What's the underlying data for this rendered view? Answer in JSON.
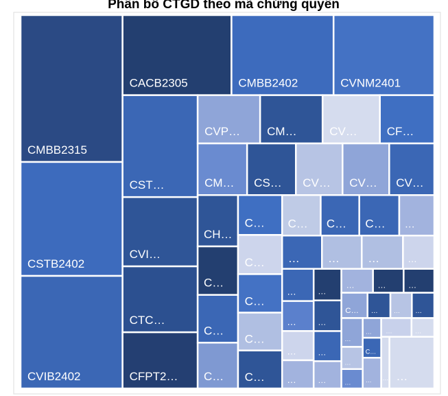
{
  "chart_data": {
    "type": "treemap",
    "title": "Phân bổ CTGD theo mã chứng quyền",
    "categories": [
      "CMBB2315",
      "CSTB2402",
      "CVIB2402",
      "CACB2305",
      "CMBB2402",
      "CVNM2401",
      "CST…",
      "CVI…",
      "CTC…",
      "CFPT2…",
      "CVP…",
      "CM…",
      "CV…",
      "CF…",
      "CM…",
      "CS…",
      "CV…",
      "CV…",
      "CV…",
      "CH…",
      "C…",
      "C…",
      "C…",
      "C…",
      "C…",
      "C…",
      "C…",
      "C…",
      "C…",
      "C…",
      "C…",
      "…",
      "…",
      "…",
      "…",
      "…",
      "…",
      "…",
      "…",
      "…",
      "…",
      "…",
      "…",
      "…",
      "…",
      "…",
      "…",
      "C…",
      "…",
      "…",
      "…",
      "…",
      "…",
      "…",
      "…",
      "C…",
      "…",
      "…",
      "…",
      "…",
      "…"
    ],
    "values": [
      31672,
      24568,
      24272,
      18444,
      17284,
      17052,
      16192,
      11000,
      10472,
      8925,
      6375,
      6375,
      5850,
      5550,
      5400,
      5325,
      5100,
      5100,
      4920,
      4380,
      4140,
      4080,
      3906,
      3717,
      3654,
      3591,
      3528,
      3540,
      3304,
      3304,
      3422,
      3000,
      2800,
      2800,
      2900,
      2200,
      2150,
      2000,
      1950,
      1880,
      1850,
      1800,
      1760,
      1600,
      1600,
      1550,
      1550,
      1400,
      1225,
      1150,
      1200,
      1300,
      1000,
      875,
      770,
      780,
      1200,
      1200,
      900,
      900,
      4900
    ],
    "colors": [
      "#2b4a84",
      "#3d6bbd",
      "#3b67b5",
      "#233f70",
      "#3d6bbd",
      "#4472c4",
      "#3b67b5",
      "#2f5597",
      "#2c5090",
      "#243f72",
      "#8fa5d8",
      "#2f5597",
      "#d5dcee",
      "#3f6fc2",
      "#6a8bd0",
      "#2f5597",
      "#b7c4e4",
      "#8fa5d8",
      "#3b67b5",
      "#2f5597",
      "#233f70",
      "#3b67b5",
      "#7f99d2",
      "#3f6fc2",
      "#cdd5ec",
      "#4472c4",
      "#b0bfe2",
      "#2f5597",
      "#bfcbe6",
      "#3b67b5",
      "#3b67b5",
      "#a2b3de",
      "#3b67b5",
      "#b0bfe2",
      "#b0bfe2",
      "#cdd5ec",
      "#3b67b5",
      "#5b80cc",
      "#cdd5ec",
      "#a2b3de",
      "#233f70",
      "#2f5597",
      "#3b67b5",
      "#a2b3de",
      "#a2b3de",
      "#233f70",
      "#233f70",
      "#8fa5d8",
      "#2f5597",
      "#b7c4e4",
      "#2f5597",
      "#8fa5d8",
      "#b7c4e4",
      "#6a8bd0",
      "#8fa5d8",
      "#3b67b5",
      "#a2b3de",
      "#c8d1eb",
      "#d5dcee",
      "#d5dcee",
      "#d5dcee"
    ]
  }
}
